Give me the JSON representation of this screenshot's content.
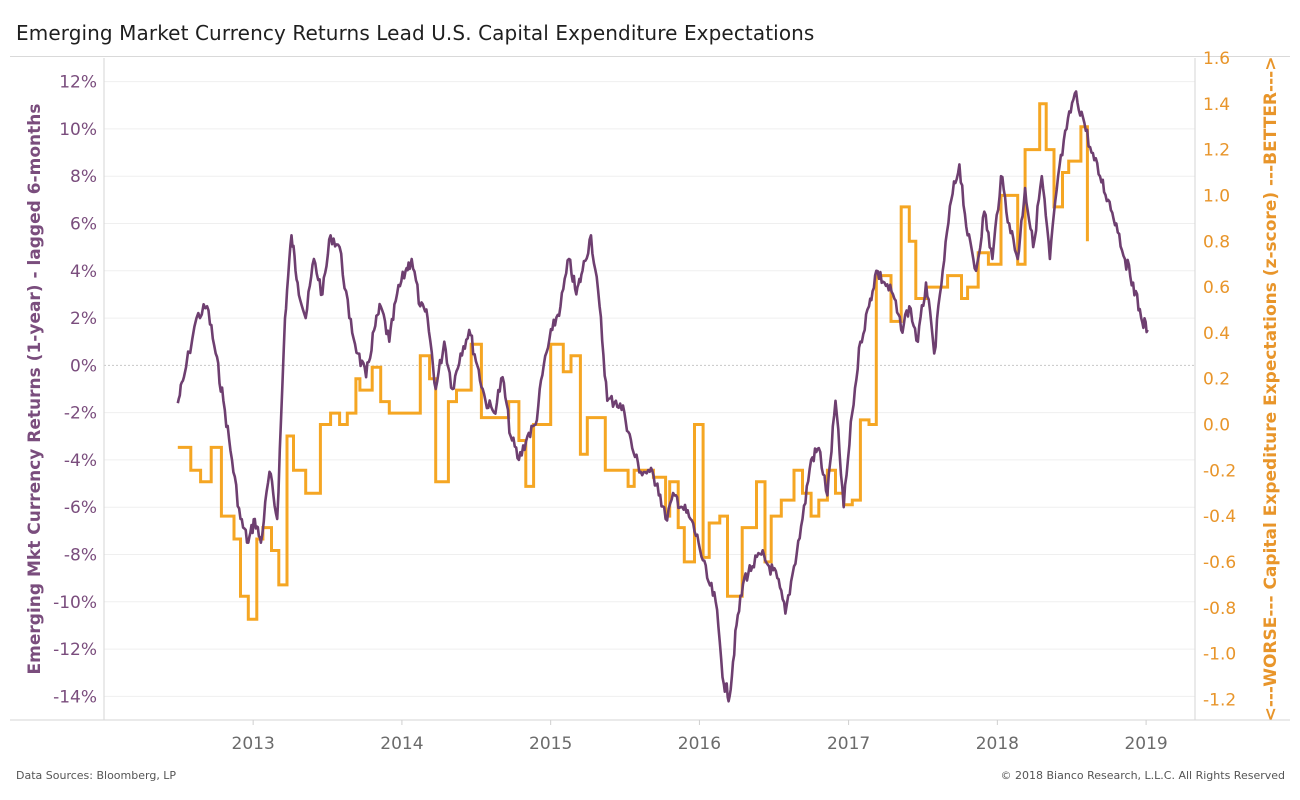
{
  "title": "Emerging Market Currency Returns Lead U.S. Capital Expenditure Expectations",
  "footer": {
    "source": "Data Sources: Bloomberg, LP",
    "copyright": "© 2018 Bianco Research, L.L.C. All Rights Reserved"
  },
  "colors": {
    "em": "#6e3f70",
    "capex": "#f5a623",
    "left_axis_text": "#7a4d7d",
    "right_axis_text": "#e8952a"
  },
  "chart_data": {
    "type": "line",
    "left_axis": {
      "label": "Emerging Mkt Currency Returns (1-year) - lagged 6-months",
      "ylim": [
        -15,
        13
      ],
      "ticks": [
        "12%",
        "10%",
        "8%",
        "6%",
        "4%",
        "2%",
        "0%",
        "-2%",
        "-4%",
        "-6%",
        "-8%",
        "-10%",
        "-12%",
        "-14%"
      ]
    },
    "right_axis": {
      "label": "<---WORSE--- Capital Expediture Expectations (z-score) ---BETTER--->",
      "ylim": [
        -1.29,
        1.6
      ],
      "ticks": [
        "1.6",
        "1.4",
        "1.2",
        "1.0",
        "0.8",
        "0.6",
        "0.4",
        "0.2",
        "0.0",
        "-0.2",
        "-0.4",
        "-0.6",
        "-0.8",
        "-1.0",
        "-1.2"
      ]
    },
    "x_axis": {
      "xlim": [
        "2012-01-01",
        "2019-05-01"
      ],
      "ticks": [
        "2013",
        "2014",
        "2015",
        "2016",
        "2017",
        "2018",
        "2019"
      ]
    },
    "series": [
      {
        "name": "Emerging Mkt Currency Returns (1-year) - lagged 6-months",
        "axis": "left",
        "x": [
          "2012-06-30",
          "2012-07-15",
          "2012-08-15",
          "2012-09-10",
          "2012-10-01",
          "2012-10-20",
          "2012-11-10",
          "2012-12-01",
          "2012-12-20",
          "2013-01-05",
          "2013-01-20",
          "2013-02-10",
          "2013-03-01",
          "2013-03-20",
          "2013-04-05",
          "2013-04-20",
          "2013-05-10",
          "2013-05-30",
          "2013-06-20",
          "2013-07-10",
          "2013-08-01",
          "2013-08-25",
          "2013-09-15",
          "2013-10-05",
          "2013-10-25",
          "2013-11-10",
          "2013-12-01",
          "2013-12-20",
          "2014-01-10",
          "2014-01-25",
          "2014-02-15",
          "2014-03-05",
          "2014-03-25",
          "2014-04-15",
          "2014-05-05",
          "2014-05-25",
          "2014-06-15",
          "2014-07-05",
          "2014-07-25",
          "2014-08-15",
          "2014-09-05",
          "2014-09-25",
          "2014-10-15",
          "2014-11-05",
          "2014-11-25",
          "2014-12-15",
          "2015-01-05",
          "2015-01-25",
          "2015-02-15",
          "2015-03-05",
          "2015-03-20",
          "2015-04-10",
          "2015-05-01",
          "2015-05-20",
          "2015-06-10",
          "2015-07-01",
          "2015-07-20",
          "2015-08-10",
          "2015-09-01",
          "2015-09-20",
          "2015-10-10",
          "2015-11-01",
          "2015-11-20",
          "2015-12-10",
          "2015-12-30",
          "2016-01-20",
          "2016-02-10",
          "2016-03-01",
          "2016-03-15",
          "2016-04-01",
          "2016-04-20",
          "2016-05-10",
          "2016-06-01",
          "2016-06-20",
          "2016-07-10",
          "2016-07-30",
          "2016-08-20",
          "2016-09-10",
          "2016-10-01",
          "2016-10-20",
          "2016-11-10",
          "2016-11-30",
          "2016-12-20",
          "2017-01-10",
          "2017-01-30",
          "2017-02-20",
          "2017-03-10",
          "2017-03-30",
          "2017-04-20",
          "2017-05-10",
          "2017-05-30",
          "2017-06-20",
          "2017-07-10",
          "2017-07-30",
          "2017-08-20",
          "2017-09-10",
          "2017-09-30",
          "2017-10-20",
          "2017-11-10",
          "2017-11-30",
          "2017-12-20",
          "2018-01-10",
          "2018-01-30",
          "2018-02-20",
          "2018-03-10",
          "2018-03-30",
          "2018-04-20",
          "2018-05-10",
          "2018-05-30",
          "2018-06-20",
          "2018-07-10",
          "2018-07-30",
          "2018-08-20",
          "2018-09-10",
          "2018-09-30",
          "2018-10-20",
          "2018-11-10",
          "2018-11-30",
          "2018-12-20",
          "2019-01-05"
        ],
        "values": [
          -1.6,
          -0.5,
          2.0,
          2.5,
          0.5,
          -1.5,
          -4.0,
          -6.5,
          -7.5,
          -6.5,
          -7.5,
          -4.5,
          -6.5,
          2.0,
          5.5,
          3.5,
          2.0,
          4.5,
          3.0,
          5.5,
          5.0,
          2.0,
          0.5,
          -0.5,
          1.5,
          2.5,
          1.0,
          3.0,
          4.0,
          4.5,
          2.5,
          2.0,
          -1.0,
          1.0,
          -1.0,
          0.5,
          1.5,
          0.0,
          -1.5,
          -2.0,
          -0.5,
          -3.0,
          -4.0,
          -3.0,
          -2.5,
          0.0,
          1.5,
          2.5,
          4.5,
          3.0,
          4.0,
          5.5,
          2.5,
          -1.5,
          -1.5,
          -2.0,
          -3.5,
          -4.5,
          -4.5,
          -5.0,
          -6.5,
          -5.5,
          -6.0,
          -6.5,
          -7.5,
          -9.0,
          -10.0,
          -13.5,
          -14.0,
          -11.0,
          -9.0,
          -8.5,
          -8.0,
          -8.5,
          -9.0,
          -10.5,
          -8.5,
          -6.5,
          -4.0,
          -3.5,
          -5.5,
          -1.5,
          -6.0,
          -2.0,
          1.0,
          2.5,
          4.0,
          3.5,
          3.0,
          1.5,
          2.5,
          1.0,
          3.5,
          0.5,
          4.0,
          7.0,
          8.5,
          5.5,
          4.0,
          6.5,
          4.5,
          8.0,
          6.0,
          4.5,
          7.5,
          5.0,
          8.0,
          4.5,
          8.0,
          10.0,
          11.5,
          10.5,
          9.0,
          8.0,
          7.0,
          6.0,
          4.5,
          3.5,
          2.0,
          1.5
        ]
      },
      {
        "name": "<---WORSE--- Capital Expediture Expectations (z-score) ---BETTER--->",
        "axis": "right",
        "step": true,
        "x": [
          "2012-06-30",
          "2012-08-01",
          "2012-08-25",
          "2012-09-20",
          "2012-10-15",
          "2012-11-15",
          "2012-12-01",
          "2012-12-20",
          "2013-01-10",
          "2013-01-25",
          "2013-02-15",
          "2013-03-05",
          "2013-03-25",
          "2013-04-10",
          "2013-05-10",
          "2013-06-15",
          "2013-07-10",
          "2013-08-01",
          "2013-08-20",
          "2013-09-10",
          "2013-09-20",
          "2013-10-20",
          "2013-11-10",
          "2013-12-01",
          "2014-01-10",
          "2014-01-20",
          "2014-02-15",
          "2014-03-10",
          "2014-03-25",
          "2014-04-25",
          "2014-05-15",
          "2014-06-20",
          "2014-07-15",
          "2014-08-25",
          "2014-09-20",
          "2014-10-15",
          "2014-11-01",
          "2014-11-20",
          "2015-01-01",
          "2015-02-01",
          "2015-02-20",
          "2015-03-15",
          "2015-04-01",
          "2015-04-20",
          "2015-05-15",
          "2015-06-20",
          "2015-07-10",
          "2015-07-25",
          "2015-09-10",
          "2015-10-10",
          "2015-10-20",
          "2015-11-10",
          "2015-11-25",
          "2015-12-20",
          "2016-01-10",
          "2016-01-25",
          "2016-02-20",
          "2016-03-10",
          "2016-04-15",
          "2016-05-01",
          "2016-05-20",
          "2016-06-10",
          "2016-06-25",
          "2016-07-20",
          "2016-08-20",
          "2016-09-10",
          "2016-10-01",
          "2016-10-20",
          "2016-11-10",
          "2016-11-30",
          "2016-12-20",
          "2017-01-10",
          "2017-01-30",
          "2017-02-20",
          "2017-03-10",
          "2017-04-15",
          "2017-05-10",
          "2017-05-30",
          "2017-06-15",
          "2017-07-10",
          "2017-08-10",
          "2017-09-01",
          "2017-10-05",
          "2017-10-20",
          "2017-11-15",
          "2017-12-10",
          "2018-01-10",
          "2018-02-01",
          "2018-02-20",
          "2018-03-10",
          "2018-04-15",
          "2018-05-01",
          "2018-05-20",
          "2018-06-10",
          "2018-06-25",
          "2018-07-25",
          "2018-08-10"
        ],
        "values": [
          -0.1,
          -0.2,
          -0.25,
          -0.1,
          -0.4,
          -0.5,
          -0.75,
          -0.85,
          -0.5,
          -0.45,
          -0.55,
          -0.7,
          -0.05,
          -0.2,
          -0.3,
          0.0,
          0.05,
          0.0,
          0.05,
          0.2,
          0.15,
          0.25,
          0.1,
          0.05,
          0.05,
          0.05,
          0.3,
          0.2,
          -0.25,
          0.1,
          0.15,
          0.35,
          0.03,
          0.03,
          0.1,
          -0.07,
          -0.27,
          0.0,
          0.35,
          0.23,
          0.3,
          -0.13,
          0.03,
          0.03,
          -0.2,
          -0.2,
          -0.27,
          -0.2,
          -0.23,
          -0.4,
          -0.25,
          -0.45,
          -0.6,
          0.0,
          -0.58,
          -0.43,
          -0.4,
          -0.75,
          -0.45,
          -0.45,
          -0.25,
          -0.6,
          -0.4,
          -0.33,
          -0.2,
          -0.3,
          -0.4,
          -0.33,
          -0.2,
          -0.3,
          -0.35,
          -0.33,
          0.02,
          0.0,
          0.65,
          0.45,
          0.95,
          0.8,
          0.55,
          0.6,
          0.6,
          0.65,
          0.55,
          0.6,
          0.75,
          0.7,
          1.0,
          1.0,
          0.7,
          1.2,
          1.4,
          1.2,
          0.95,
          1.1,
          1.15,
          1.3,
          0.8
        ]
      }
    ]
  }
}
